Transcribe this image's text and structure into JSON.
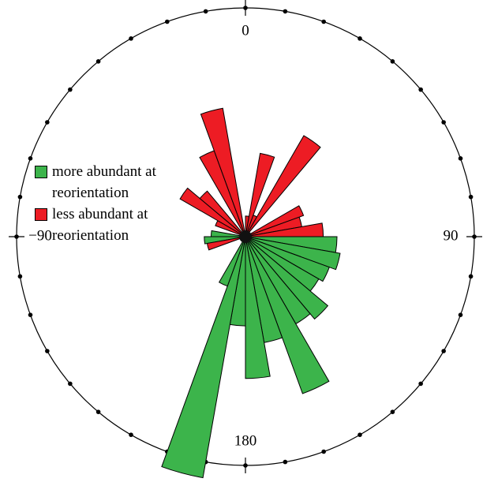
{
  "chart_data": {
    "type": "rose",
    "theta_ticks": [
      0,
      90,
      180,
      {
        "value": -90,
        "label": "−90"
      }
    ],
    "rlim": [
      0,
      100
    ],
    "series": [
      {
        "name": "more abundant at reorientation",
        "color": "#3cb44b",
        "theta": [
          -95,
          -85,
          95,
          105,
          115,
          125,
          135,
          145,
          155,
          165,
          175,
          185,
          195,
          205
        ],
        "values": [
          18,
          15,
          40,
          42,
          39,
          37,
          47,
          44,
          73,
          47,
          62,
          39,
          107,
          23
        ]
      },
      {
        "name": "less abundant at reorientation",
        "color": "#ed1c24",
        "theta": [
          -105,
          -65,
          -55,
          -45,
          -25,
          -15,
          5,
          15,
          25,
          35,
          65,
          75,
          85
        ],
        "values": [
          17,
          14,
          33,
          26,
          40,
          57,
          9,
          37,
          10,
          51,
          27,
          25,
          34
        ]
      }
    ]
  }
}
